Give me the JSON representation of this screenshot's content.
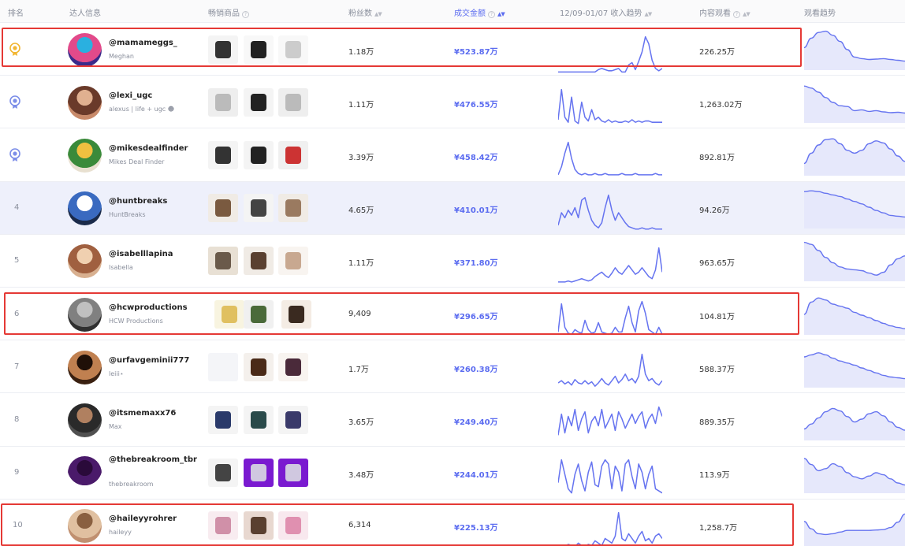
{
  "header": {
    "rank": "排名",
    "creator": "达人信息",
    "products": "畅销商品",
    "fans": "粉丝数",
    "gmv": "成交金额",
    "trend": "12/09-01/07 收入趋势",
    "views": "内容观看",
    "views_trend": "观看趋势"
  },
  "colors": {
    "accent": "#5b6cf0",
    "highlight": "#e53935",
    "gold": "#f2b632",
    "silver": "#7c8ee8"
  },
  "rows": [
    {
      "rank": "1",
      "handle": "@mamameggs_",
      "name": "Meghan",
      "fans": "1.18万",
      "gmv": "¥523.87万",
      "views": "226.25万",
      "medal": "gold",
      "income": [
        0,
        0,
        0,
        0,
        0,
        0,
        0,
        0,
        0,
        0,
        0,
        0,
        2,
        3,
        2,
        1,
        1,
        2,
        3,
        0,
        0,
        6,
        8,
        2,
        9,
        17,
        30,
        24,
        10,
        3,
        1,
        3
      ],
      "viewtrend": [
        0.55,
        0.78,
        0.92,
        0.95,
        0.85,
        0.7,
        0.5,
        0.32,
        0.28,
        0.26,
        0.27,
        0.28,
        0.26,
        0.24,
        0.22
      ]
    },
    {
      "rank": "2",
      "handle": "@lexi_ugc",
      "name": "alexus | life + ugc ☻",
      "fans": "1.11万",
      "gmv": "¥476.55万",
      "views": "1,263.02万",
      "medal": "silver",
      "income": [
        4,
        28,
        6,
        2,
        22,
        3,
        1,
        18,
        6,
        3,
        12,
        4,
        6,
        3,
        2,
        4,
        2,
        3,
        2,
        2,
        3,
        2,
        4,
        2,
        3,
        2,
        3,
        3,
        2,
        2,
        2,
        2
      ],
      "viewtrend": [
        0.9,
        0.85,
        0.75,
        0.62,
        0.5,
        0.42,
        0.4,
        0.3,
        0.32,
        0.28,
        0.3,
        0.27,
        0.25,
        0.26,
        0.24
      ]
    },
    {
      "rank": "3",
      "handle": "@mikesdealfinder",
      "name": "Mikes Deal Finder",
      "fans": "3.39万",
      "gmv": "¥458.42万",
      "views": "892.81万",
      "medal": "silver",
      "income": [
        2,
        8,
        18,
        26,
        14,
        6,
        3,
        2,
        3,
        2,
        2,
        3,
        2,
        2,
        3,
        2,
        2,
        2,
        2,
        3,
        2,
        2,
        2,
        3,
        2,
        2,
        2,
        2,
        2,
        3,
        2,
        2
      ],
      "viewtrend": [
        0.3,
        0.55,
        0.75,
        0.88,
        0.9,
        0.78,
        0.62,
        0.55,
        0.62,
        0.78,
        0.85,
        0.8,
        0.65,
        0.48,
        0.35
      ]
    },
    {
      "rank": "4",
      "handle": "@huntbreaks",
      "name": "HuntBreaks",
      "fans": "4.65万",
      "gmv": "¥410.01万",
      "views": "94.26万",
      "medal": "",
      "income": [
        4,
        14,
        10,
        16,
        12,
        18,
        10,
        24,
        26,
        16,
        8,
        4,
        2,
        6,
        18,
        28,
        16,
        8,
        14,
        10,
        6,
        3,
        2,
        1,
        1,
        2,
        1,
        1,
        2,
        1,
        1,
        1
      ],
      "viewtrend": [
        0.9,
        0.92,
        0.9,
        0.86,
        0.82,
        0.78,
        0.72,
        0.66,
        0.6,
        0.52,
        0.44,
        0.38,
        0.32,
        0.3,
        0.28
      ]
    },
    {
      "rank": "5",
      "handle": "@isabelllapina",
      "name": "Isabella",
      "fans": "1.11万",
      "gmv": "¥371.80万",
      "views": "963.65万",
      "medal": "",
      "income": [
        1,
        1,
        1,
        2,
        1,
        2,
        3,
        4,
        3,
        2,
        3,
        6,
        8,
        10,
        7,
        5,
        9,
        14,
        10,
        8,
        12,
        16,
        12,
        8,
        10,
        14,
        10,
        6,
        4,
        12,
        32,
        10
      ],
      "viewtrend": [
        0.95,
        0.9,
        0.75,
        0.58,
        0.45,
        0.35,
        0.3,
        0.28,
        0.26,
        0.2,
        0.15,
        0.22,
        0.4,
        0.55,
        0.62
      ]
    },
    {
      "rank": "6",
      "handle": "@hcwproductions",
      "name": "HCW Productions",
      "fans": "9,409",
      "gmv": "¥296.65万",
      "views": "104.81万",
      "medal": "",
      "income": [
        4,
        28,
        8,
        3,
        2,
        6,
        4,
        3,
        14,
        6,
        3,
        4,
        12,
        4,
        3,
        2,
        3,
        8,
        4,
        4,
        16,
        26,
        12,
        4,
        22,
        30,
        20,
        6,
        4,
        2,
        8,
        2
      ],
      "viewtrend": [
        0.5,
        0.8,
        0.9,
        0.85,
        0.75,
        0.7,
        0.65,
        0.55,
        0.48,
        0.42,
        0.35,
        0.28,
        0.22,
        0.18,
        0.15
      ]
    },
    {
      "rank": "7",
      "handle": "@urfavgeminii777",
      "name": "leiii⋆",
      "fans": "1.7万",
      "gmv": "¥260.38万",
      "views": "588.37万",
      "medal": "",
      "income": [
        6,
        8,
        5,
        7,
        4,
        9,
        6,
        5,
        8,
        5,
        7,
        3,
        6,
        10,
        6,
        4,
        8,
        12,
        6,
        9,
        14,
        8,
        10,
        6,
        12,
        32,
        14,
        8,
        10,
        6,
        4,
        8
      ],
      "viewtrend": [
        0.75,
        0.8,
        0.85,
        0.8,
        0.72,
        0.65,
        0.6,
        0.55,
        0.48,
        0.42,
        0.36,
        0.3,
        0.26,
        0.24,
        0.22
      ]
    },
    {
      "rank": "8",
      "handle": "@itsmemaxx76",
      "name": "Max",
      "fans": "3.65万",
      "gmv": "¥249.40万",
      "views": "889.35万",
      "medal": "",
      "income": [
        6,
        24,
        8,
        22,
        14,
        28,
        10,
        20,
        26,
        8,
        18,
        22,
        14,
        28,
        12,
        18,
        24,
        10,
        26,
        20,
        12,
        18,
        24,
        16,
        22,
        26,
        12,
        20,
        24,
        16,
        30,
        22
      ],
      "viewtrend": [
        0.28,
        0.4,
        0.55,
        0.7,
        0.78,
        0.72,
        0.58,
        0.45,
        0.52,
        0.65,
        0.7,
        0.6,
        0.45,
        0.32,
        0.25
      ]
    },
    {
      "rank": "9",
      "handle": "@thebreakroom_tbr",
      "name": "thebreakroom",
      "fans": "3.48万",
      "gmv": "¥244.01万",
      "views": "113.9万",
      "medal": "",
      "income": [
        12,
        34,
        20,
        6,
        2,
        20,
        30,
        14,
        4,
        22,
        32,
        10,
        8,
        28,
        34,
        30,
        6,
        28,
        22,
        4,
        30,
        34,
        18,
        6,
        30,
        22,
        6,
        20,
        28,
        6,
        4,
        2
      ],
      "viewtrend": [
        0.85,
        0.7,
        0.55,
        0.6,
        0.72,
        0.65,
        0.5,
        0.4,
        0.35,
        0.42,
        0.5,
        0.45,
        0.35,
        0.25,
        0.2
      ]
    },
    {
      "rank": "10",
      "handle": "@haileyyrohrer",
      "name": "haileyy",
      "fans": "6,314",
      "gmv": "¥225.13万",
      "views": "1,258.7万",
      "medal": "",
      "income": [
        1,
        2,
        1,
        3,
        2,
        1,
        4,
        2,
        1,
        3,
        2,
        6,
        4,
        2,
        8,
        6,
        4,
        10,
        30,
        8,
        6,
        12,
        8,
        4,
        10,
        14,
        6,
        8,
        4,
        10,
        12,
        8
      ],
      "viewtrend": [
        0.6,
        0.42,
        0.3,
        0.28,
        0.3,
        0.34,
        0.38,
        0.38,
        0.38,
        0.38,
        0.39,
        0.4,
        0.45,
        0.58,
        0.78
      ]
    }
  ]
}
